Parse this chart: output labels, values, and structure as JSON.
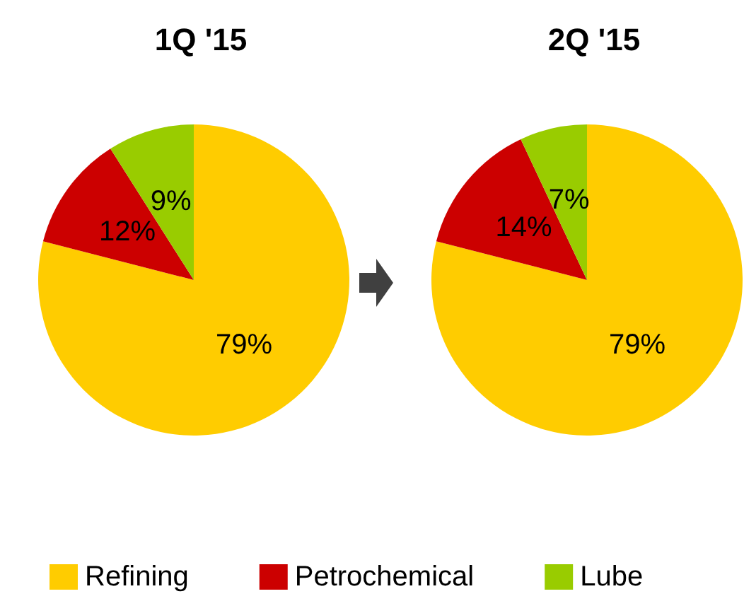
{
  "chart_data": [
    {
      "type": "pie",
      "title": "1Q '15",
      "categories": [
        "Refining",
        "Petrochemical",
        "Lube"
      ],
      "values": [
        79,
        12,
        9
      ],
      "value_labels": [
        "79%",
        "12%",
        "9%"
      ],
      "colors": [
        "#ffcc00",
        "#cc0000",
        "#99cc00"
      ],
      "legend": "bottom"
    },
    {
      "type": "pie",
      "title": "2Q '15",
      "categories": [
        null,
        null,
        null
      ],
      "values": [
        79,
        14,
        7
      ],
      "value_labels": [
        "79%",
        "14%",
        "7%"
      ],
      "colors": [
        "#ffcc00",
        "#cc0000",
        "#99cc00"
      ],
      "legend": false
    }
  ]
}
